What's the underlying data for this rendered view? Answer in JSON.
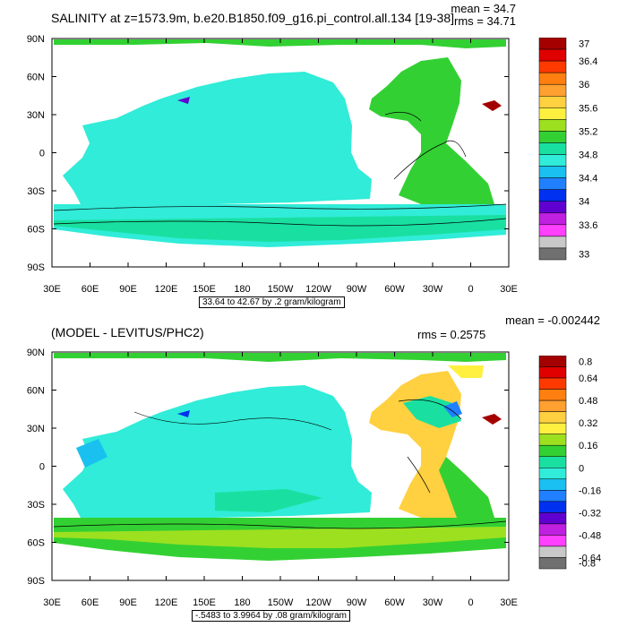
{
  "panels": [
    {
      "title": "SALINITY at z=1573.9m, b.e20.B1850.f09_g16.pi_control.all.134 [19-38]",
      "mean": "mean = 34.7",
      "rms": "rms = 34.71",
      "info": "33.64 to 42.67 by .2 gram/kilogram",
      "colorbar_labels": [
        "37",
        "36.4",
        "36",
        "35.6",
        "35.2",
        "34.8",
        "34.4",
        "34",
        "33.6",
        "33"
      ],
      "colorbar_colors": [
        "#a50000",
        "#e00000",
        "#ff3a00",
        "#ff7f10",
        "#ffa030",
        "#ffd040",
        "#fff040",
        "#9ce020",
        "#33d033",
        "#19e0a0",
        "#30ecd8",
        "#19c0f0",
        "#2080ff",
        "#0030f0",
        "#6000d0",
        "#c020e0",
        "#ff40ff",
        "#c8c8c8",
        "#707070"
      ]
    },
    {
      "title": "(MODEL - LEVITUS/PHC2)",
      "mean": "mean = -0.002442",
      "rms": "rms = 0.2575",
      "info": "-.5483 to 3.9964 by .08 gram/kilogram",
      "colorbar_labels": [
        "0.8",
        "0.64",
        "0.48",
        "0.32",
        "0.16",
        "0",
        "-0.16",
        "-0.32",
        "-0.48",
        "-0.64",
        "-0.8"
      ],
      "colorbar_colors": [
        "#a50000",
        "#e00000",
        "#ff3a00",
        "#ff7f10",
        "#ffa030",
        "#ffd040",
        "#fff040",
        "#9ce020",
        "#33d033",
        "#19e0a0",
        "#30ecd8",
        "#19c0f0",
        "#2080ff",
        "#0030f0",
        "#6000d0",
        "#c020e0",
        "#ff40ff",
        "#c8c8c8",
        "#707070"
      ]
    }
  ],
  "axes": {
    "lon_labels": [
      "30E",
      "60E",
      "90E",
      "120E",
      "150E",
      "180",
      "150W",
      "120W",
      "90W",
      "60W",
      "30W",
      "0",
      "30E"
    ],
    "lat_labels": [
      "90N",
      "60N",
      "30N",
      "0",
      "30S",
      "60S",
      "90S"
    ]
  }
}
